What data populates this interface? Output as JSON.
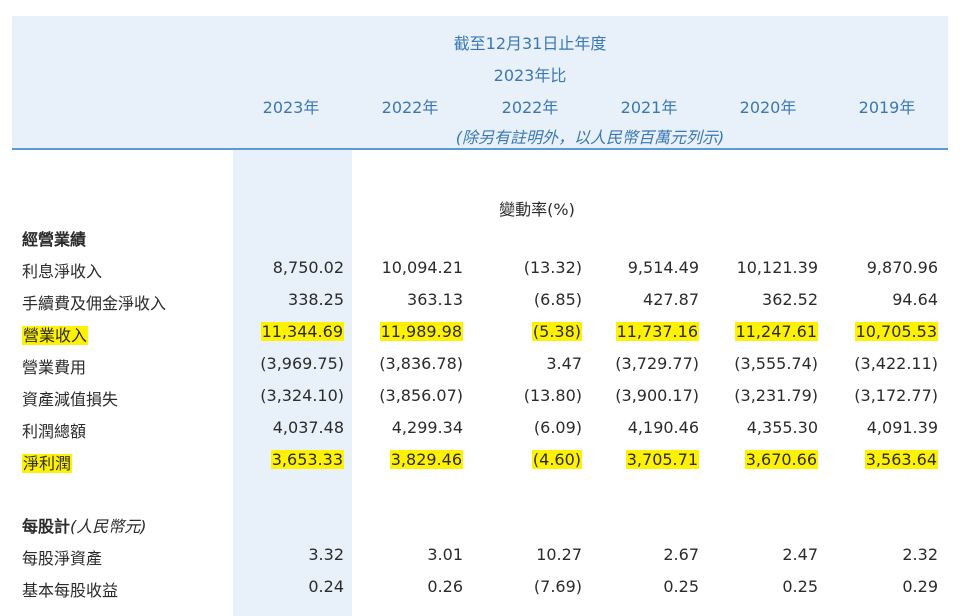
{
  "header": {
    "line1": "截至12月31日止年度",
    "line2": "2023年比",
    "years": [
      "2023年",
      "2022年",
      "2022年",
      "2021年",
      "2020年",
      "2019年"
    ],
    "unit_note": "(除另有註明外，以人民幣百萬元列示)"
  },
  "change_label": "變動率(%)",
  "section1": {
    "title": "經營業績",
    "rows": [
      {
        "label": "利息淨收入",
        "values": [
          "8,750.02",
          "10,094.21",
          "(13.32)",
          "9,514.49",
          "10,121.39",
          "9,870.96"
        ],
        "highlight": false
      },
      {
        "label": "手續費及佣金淨收入",
        "values": [
          "338.25",
          "363.13",
          "(6.85)",
          "427.87",
          "362.52",
          "94.64"
        ],
        "highlight": false
      },
      {
        "label": "營業收入",
        "values": [
          "11,344.69",
          "11,989.98",
          "(5.38)",
          "11,737.16",
          "11,247.61",
          "10,705.53"
        ],
        "highlight": true
      },
      {
        "label": "營業費用",
        "values": [
          "(3,969.75)",
          "(3,836.78)",
          "3.47",
          "(3,729.77)",
          "(3,555.74)",
          "(3,422.11)"
        ],
        "highlight": false
      },
      {
        "label": "資產減值損失",
        "values": [
          "(3,324.10)",
          "(3,856.07)",
          "(13.80)",
          "(3,900.17)",
          "(3,231.79)",
          "(3,172.77)"
        ],
        "highlight": false
      },
      {
        "label": "利潤總額",
        "values": [
          "4,037.48",
          "4,299.34",
          "(6.09)",
          "4,190.46",
          "4,355.30",
          "4,091.39"
        ],
        "highlight": false
      },
      {
        "label": "淨利潤",
        "values": [
          "3,653.33",
          "3,829.46",
          "(4.60)",
          "3,705.71",
          "3,670.66",
          "3,563.64"
        ],
        "highlight": true
      }
    ]
  },
  "section2": {
    "title": "每股計",
    "title_note": "(人民幣元)",
    "rows": [
      {
        "label": "每股淨資產",
        "values": [
          "3.32",
          "3.01",
          "10.27",
          "2.67",
          "2.47",
          "2.32"
        ],
        "highlight": false
      },
      {
        "label": "基本每股收益",
        "values": [
          "0.24",
          "0.26",
          "(7.69)",
          "0.25",
          "0.25",
          "0.29"
        ],
        "highlight": false
      }
    ]
  },
  "colors": {
    "header_bg": "#e8f1f9",
    "header_text": "#3a78b5",
    "rule": "#5a9bd4",
    "highlight": "#fff200"
  }
}
